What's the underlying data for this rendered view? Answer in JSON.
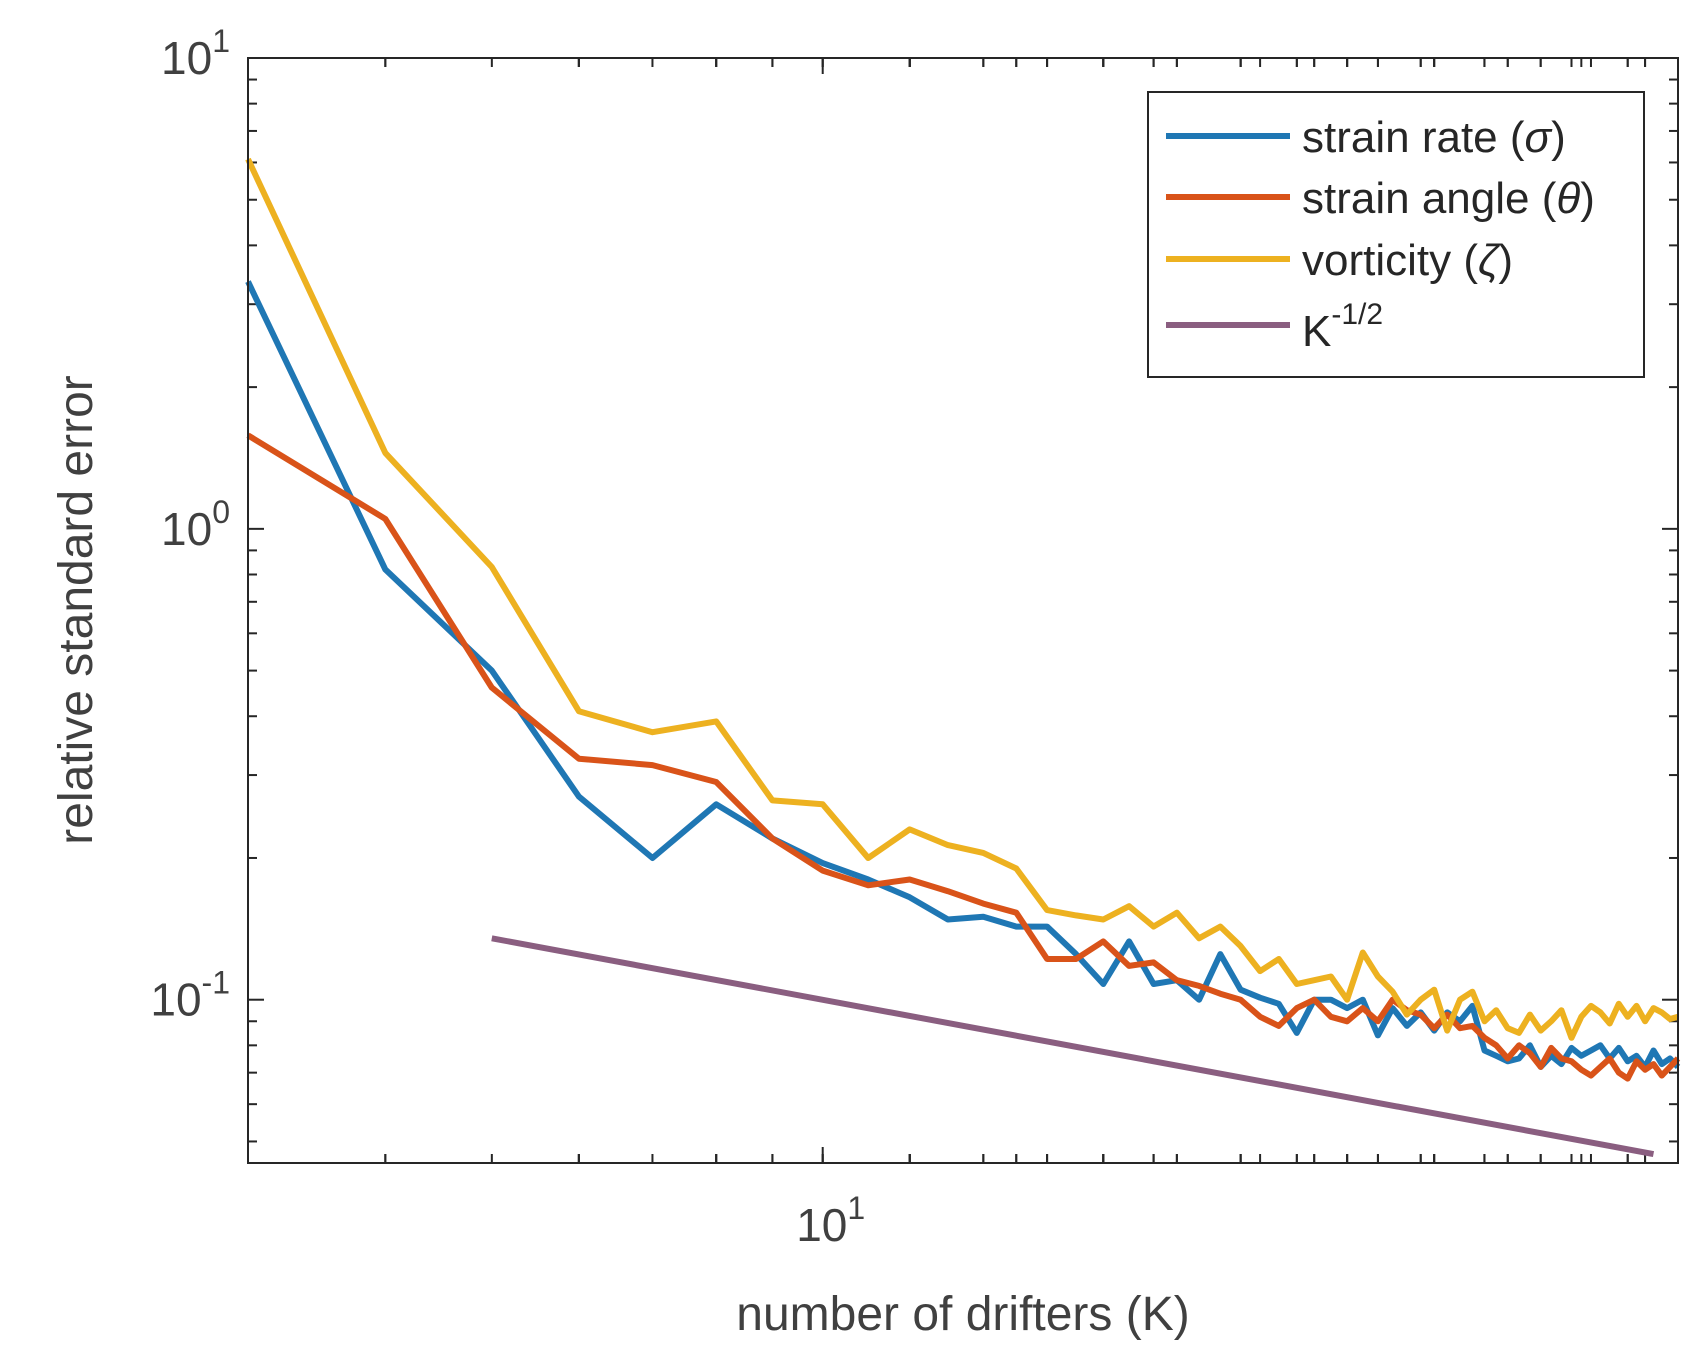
{
  "chart_data": {
    "type": "line",
    "xscale": "log",
    "yscale": "log",
    "xlim": [
      3,
      60
    ],
    "ylim": [
      0.045,
      10
    ],
    "xlabel": "number of drifters (K)",
    "ylabel": "relative standard error",
    "x_ticks": [
      {
        "base": "10",
        "exp": "1",
        "value": 10
      }
    ],
    "y_ticks": [
      {
        "base": "10",
        "exp": "1",
        "value": 10
      },
      {
        "base": "10",
        "exp": "0",
        "value": 1
      },
      {
        "base": "10",
        "exp": "-1",
        "value": 0.1
      }
    ],
    "legend_position": "top-right",
    "series": [
      {
        "name": "strain rate (σ)",
        "legend": {
          "main": "strain rate (",
          "sym": "σ",
          "close": ")"
        },
        "color": "#1f77b4",
        "x": [
          3,
          4,
          5,
          6,
          7,
          8,
          9,
          10,
          11,
          12,
          13,
          14,
          15,
          16,
          17,
          18,
          19,
          20,
          21,
          22,
          23,
          24,
          25,
          26,
          27,
          28,
          29,
          30,
          31,
          32,
          33,
          34,
          35,
          36,
          37,
          38,
          39,
          40,
          41,
          42,
          43,
          44,
          45,
          46,
          47,
          48,
          49,
          50,
          51,
          52,
          53,
          54,
          55,
          56,
          57,
          58,
          59,
          60
        ],
        "y": [
          3.35,
          0.82,
          0.5,
          0.27,
          0.2,
          0.26,
          0.22,
          0.195,
          0.18,
          0.165,
          0.148,
          0.15,
          0.143,
          0.143,
          0.125,
          0.108,
          0.133,
          0.108,
          0.11,
          0.1,
          0.125,
          0.105,
          0.101,
          0.098,
          0.085,
          0.1,
          0.1,
          0.096,
          0.1,
          0.084,
          0.096,
          0.088,
          0.094,
          0.086,
          0.094,
          0.09,
          0.097,
          0.078,
          0.076,
          0.074,
          0.075,
          0.08,
          0.072,
          0.076,
          0.073,
          0.079,
          0.076,
          0.078,
          0.08,
          0.075,
          0.079,
          0.074,
          0.076,
          0.072,
          0.078,
          0.073,
          0.075,
          0.072
        ]
      },
      {
        "name": "strain angle (θ)",
        "legend": {
          "main": "strain angle (",
          "sym": "θ",
          "close": ")"
        },
        "color": "#d95319",
        "x": [
          3,
          4,
          5,
          6,
          7,
          8,
          9,
          10,
          11,
          12,
          13,
          14,
          15,
          16,
          17,
          18,
          19,
          20,
          21,
          22,
          23,
          24,
          25,
          26,
          27,
          28,
          29,
          30,
          31,
          32,
          33,
          34,
          35,
          36,
          37,
          38,
          39,
          40,
          41,
          42,
          43,
          44,
          45,
          46,
          47,
          48,
          49,
          50,
          51,
          52,
          53,
          54,
          55,
          56,
          57,
          58,
          59,
          60
        ],
        "y": [
          1.58,
          1.05,
          0.46,
          0.325,
          0.315,
          0.29,
          0.22,
          0.188,
          0.175,
          0.18,
          0.17,
          0.16,
          0.153,
          0.122,
          0.122,
          0.133,
          0.118,
          0.12,
          0.11,
          0.107,
          0.103,
          0.1,
          0.092,
          0.088,
          0.096,
          0.1,
          0.092,
          0.09,
          0.096,
          0.09,
          0.1,
          0.095,
          0.093,
          0.087,
          0.093,
          0.087,
          0.088,
          0.083,
          0.08,
          0.075,
          0.08,
          0.077,
          0.072,
          0.079,
          0.075,
          0.074,
          0.071,
          0.069,
          0.072,
          0.075,
          0.07,
          0.068,
          0.074,
          0.071,
          0.073,
          0.069,
          0.072,
          0.075
        ]
      },
      {
        "name": "vorticity (ζ)",
        "legend": {
          "main": "vorticity (",
          "sym": "ζ",
          "close": ")"
        },
        "color": "#edb120",
        "x": [
          3,
          4,
          5,
          6,
          7,
          8,
          9,
          10,
          11,
          12,
          13,
          14,
          15,
          16,
          17,
          18,
          19,
          20,
          21,
          22,
          23,
          24,
          25,
          26,
          27,
          28,
          29,
          30,
          31,
          32,
          33,
          34,
          35,
          36,
          37,
          38,
          39,
          40,
          41,
          42,
          43,
          44,
          45,
          46,
          47,
          48,
          49,
          50,
          51,
          52,
          53,
          54,
          55,
          56,
          57,
          58,
          59,
          60
        ],
        "y": [
          6.1,
          1.45,
          0.83,
          0.41,
          0.37,
          0.39,
          0.265,
          0.26,
          0.2,
          0.23,
          0.213,
          0.205,
          0.19,
          0.155,
          0.151,
          0.148,
          0.158,
          0.143,
          0.153,
          0.135,
          0.143,
          0.13,
          0.115,
          0.122,
          0.108,
          0.11,
          0.112,
          0.1,
          0.126,
          0.112,
          0.104,
          0.093,
          0.1,
          0.105,
          0.086,
          0.1,
          0.104,
          0.09,
          0.095,
          0.087,
          0.085,
          0.093,
          0.086,
          0.09,
          0.095,
          0.083,
          0.092,
          0.097,
          0.094,
          0.089,
          0.098,
          0.092,
          0.097,
          0.09,
          0.096,
          0.094,
          0.091,
          0.092
        ]
      },
      {
        "name": "K^-1/2",
        "legend": {
          "main": "K",
          "sup": "-1/2"
        },
        "color": "#8a5e80",
        "x": [
          5,
          57
        ],
        "y": [
          0.135,
          0.047
        ]
      }
    ]
  }
}
